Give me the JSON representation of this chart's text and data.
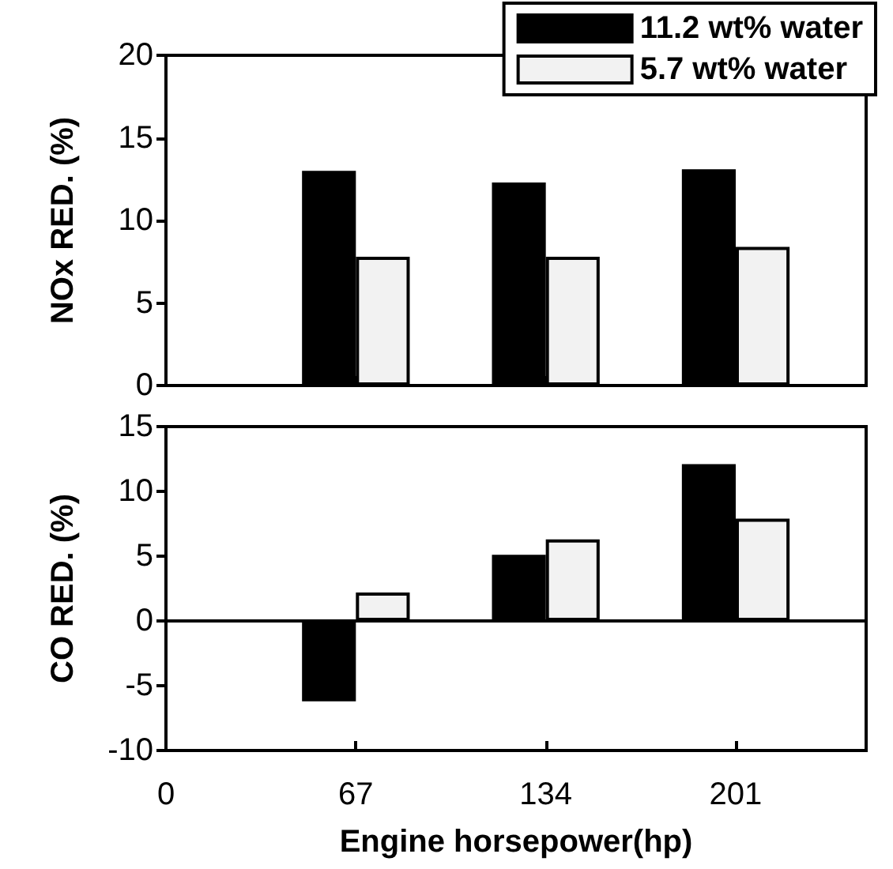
{
  "chart_data": [
    {
      "type": "bar",
      "ylabel": "NOx RED. (%)",
      "x": [
        67,
        134,
        201
      ],
      "xlim": [
        0,
        247
      ],
      "xticks": [
        0,
        67,
        134,
        201
      ],
      "ylim": [
        0,
        20
      ],
      "yticks": [
        0,
        5,
        10,
        15,
        20
      ],
      "tick_labels": "y",
      "legend": "top right",
      "grid": false,
      "series": [
        {
          "name": "11.2 wt% water",
          "color": "#000000",
          "values": [
            13,
            12.3,
            13.1
          ]
        },
        {
          "name": "5.7 wt% water",
          "color": "#f2f2f2",
          "values": [
            7.8,
            7.8,
            8.4
          ]
        }
      ]
    },
    {
      "type": "bar",
      "ylabel": "CO RED. (%)",
      "xlabel": "Engine horsepower(hp)",
      "x": [
        67,
        134,
        201
      ],
      "xlim": [
        0,
        247
      ],
      "xticks": [
        0,
        67,
        134,
        201
      ],
      "ylim": [
        -10,
        15
      ],
      "yticks": [
        -10,
        -5,
        0,
        5,
        10,
        15
      ],
      "grid": false,
      "ref_lines": [
        {
          "axis": "y",
          "value": 0
        }
      ],
      "series": [
        {
          "color": "#000000",
          "values": [
            -6.2,
            5.1,
            12.1
          ]
        },
        {
          "color": "#f2f2f2",
          "values": [
            2.2,
            6.3,
            7.9
          ]
        }
      ]
    }
  ]
}
